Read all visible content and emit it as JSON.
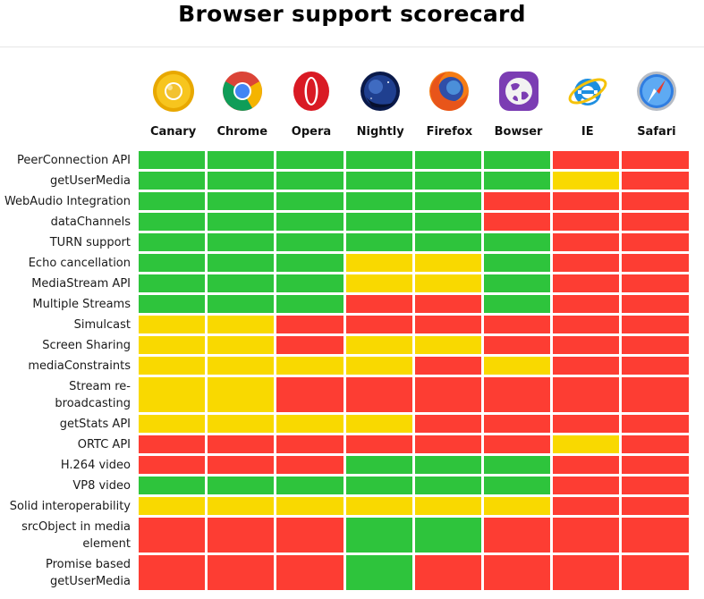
{
  "header": {
    "title": "Browser support scorecard"
  },
  "colors": {
    "green": "#2ec43c",
    "yellow": "#f9d900",
    "red": "#fd3d33"
  },
  "chart_data": {
    "type": "table",
    "title": "Browser support scorecard",
    "browsers": [
      {
        "name": "Canary",
        "icon": "chrome-canary-icon"
      },
      {
        "name": "Chrome",
        "icon": "chrome-icon"
      },
      {
        "name": "Opera",
        "icon": "opera-icon"
      },
      {
        "name": "Nightly",
        "icon": "firefox-nightly-icon"
      },
      {
        "name": "Firefox",
        "icon": "firefox-icon"
      },
      {
        "name": "Bowser",
        "icon": "bowser-icon"
      },
      {
        "name": "IE",
        "icon": "internet-explorer-icon"
      },
      {
        "name": "Safari",
        "icon": "safari-icon"
      }
    ],
    "features": [
      {
        "label": "PeerConnection API",
        "status": [
          "green",
          "green",
          "green",
          "green",
          "green",
          "green",
          "red",
          "red"
        ]
      },
      {
        "label": "getUserMedia",
        "status": [
          "green",
          "green",
          "green",
          "green",
          "green",
          "green",
          "yellow",
          "red"
        ]
      },
      {
        "label": "WebAudio Integration",
        "status": [
          "green",
          "green",
          "green",
          "green",
          "green",
          "red",
          "red",
          "red"
        ]
      },
      {
        "label": "dataChannels",
        "status": [
          "green",
          "green",
          "green",
          "green",
          "green",
          "red",
          "red",
          "red"
        ]
      },
      {
        "label": "TURN support",
        "status": [
          "green",
          "green",
          "green",
          "green",
          "green",
          "green",
          "red",
          "red"
        ]
      },
      {
        "label": "Echo cancellation",
        "status": [
          "green",
          "green",
          "green",
          "yellow",
          "yellow",
          "green",
          "red",
          "red"
        ]
      },
      {
        "label": "MediaStream API",
        "status": [
          "green",
          "green",
          "green",
          "yellow",
          "yellow",
          "green",
          "red",
          "red"
        ]
      },
      {
        "label": "Multiple Streams",
        "status": [
          "green",
          "green",
          "green",
          "red",
          "red",
          "green",
          "red",
          "red"
        ]
      },
      {
        "label": "Simulcast",
        "status": [
          "yellow",
          "yellow",
          "red",
          "red",
          "red",
          "red",
          "red",
          "red"
        ]
      },
      {
        "label": "Screen Sharing",
        "status": [
          "yellow",
          "yellow",
          "red",
          "yellow",
          "yellow",
          "red",
          "red",
          "red"
        ]
      },
      {
        "label": "mediaConstraints",
        "status": [
          "yellow",
          "yellow",
          "yellow",
          "yellow",
          "red",
          "yellow",
          "red",
          "red"
        ]
      },
      {
        "label": "Stream re-broadcasting",
        "lines": [
          "Stream re-",
          "broadcasting"
        ],
        "status": [
          "yellow",
          "yellow",
          "red",
          "red",
          "red",
          "red",
          "red",
          "red"
        ]
      },
      {
        "label": "getStats API",
        "status": [
          "yellow",
          "yellow",
          "yellow",
          "yellow",
          "red",
          "red",
          "red",
          "red"
        ]
      },
      {
        "label": "ORTC API",
        "status": [
          "red",
          "red",
          "red",
          "red",
          "red",
          "red",
          "yellow",
          "red"
        ]
      },
      {
        "label": "H.264 video",
        "status": [
          "red",
          "red",
          "red",
          "green",
          "green",
          "green",
          "red",
          "red"
        ]
      },
      {
        "label": "VP8 video",
        "status": [
          "green",
          "green",
          "green",
          "green",
          "green",
          "green",
          "red",
          "red"
        ]
      },
      {
        "label": "Solid interoperability",
        "status": [
          "yellow",
          "yellow",
          "yellow",
          "yellow",
          "yellow",
          "yellow",
          "red",
          "red"
        ]
      },
      {
        "label": "srcObject in media element",
        "lines": [
          "srcObject in media",
          "element"
        ],
        "status": [
          "red",
          "red",
          "red",
          "green",
          "green",
          "red",
          "red",
          "red"
        ]
      },
      {
        "label": "Promise based getUserMedia",
        "lines": [
          "Promise based",
          "getUserMedia"
        ],
        "status": [
          "red",
          "red",
          "red",
          "green",
          "red",
          "red",
          "red",
          "red"
        ]
      }
    ]
  }
}
